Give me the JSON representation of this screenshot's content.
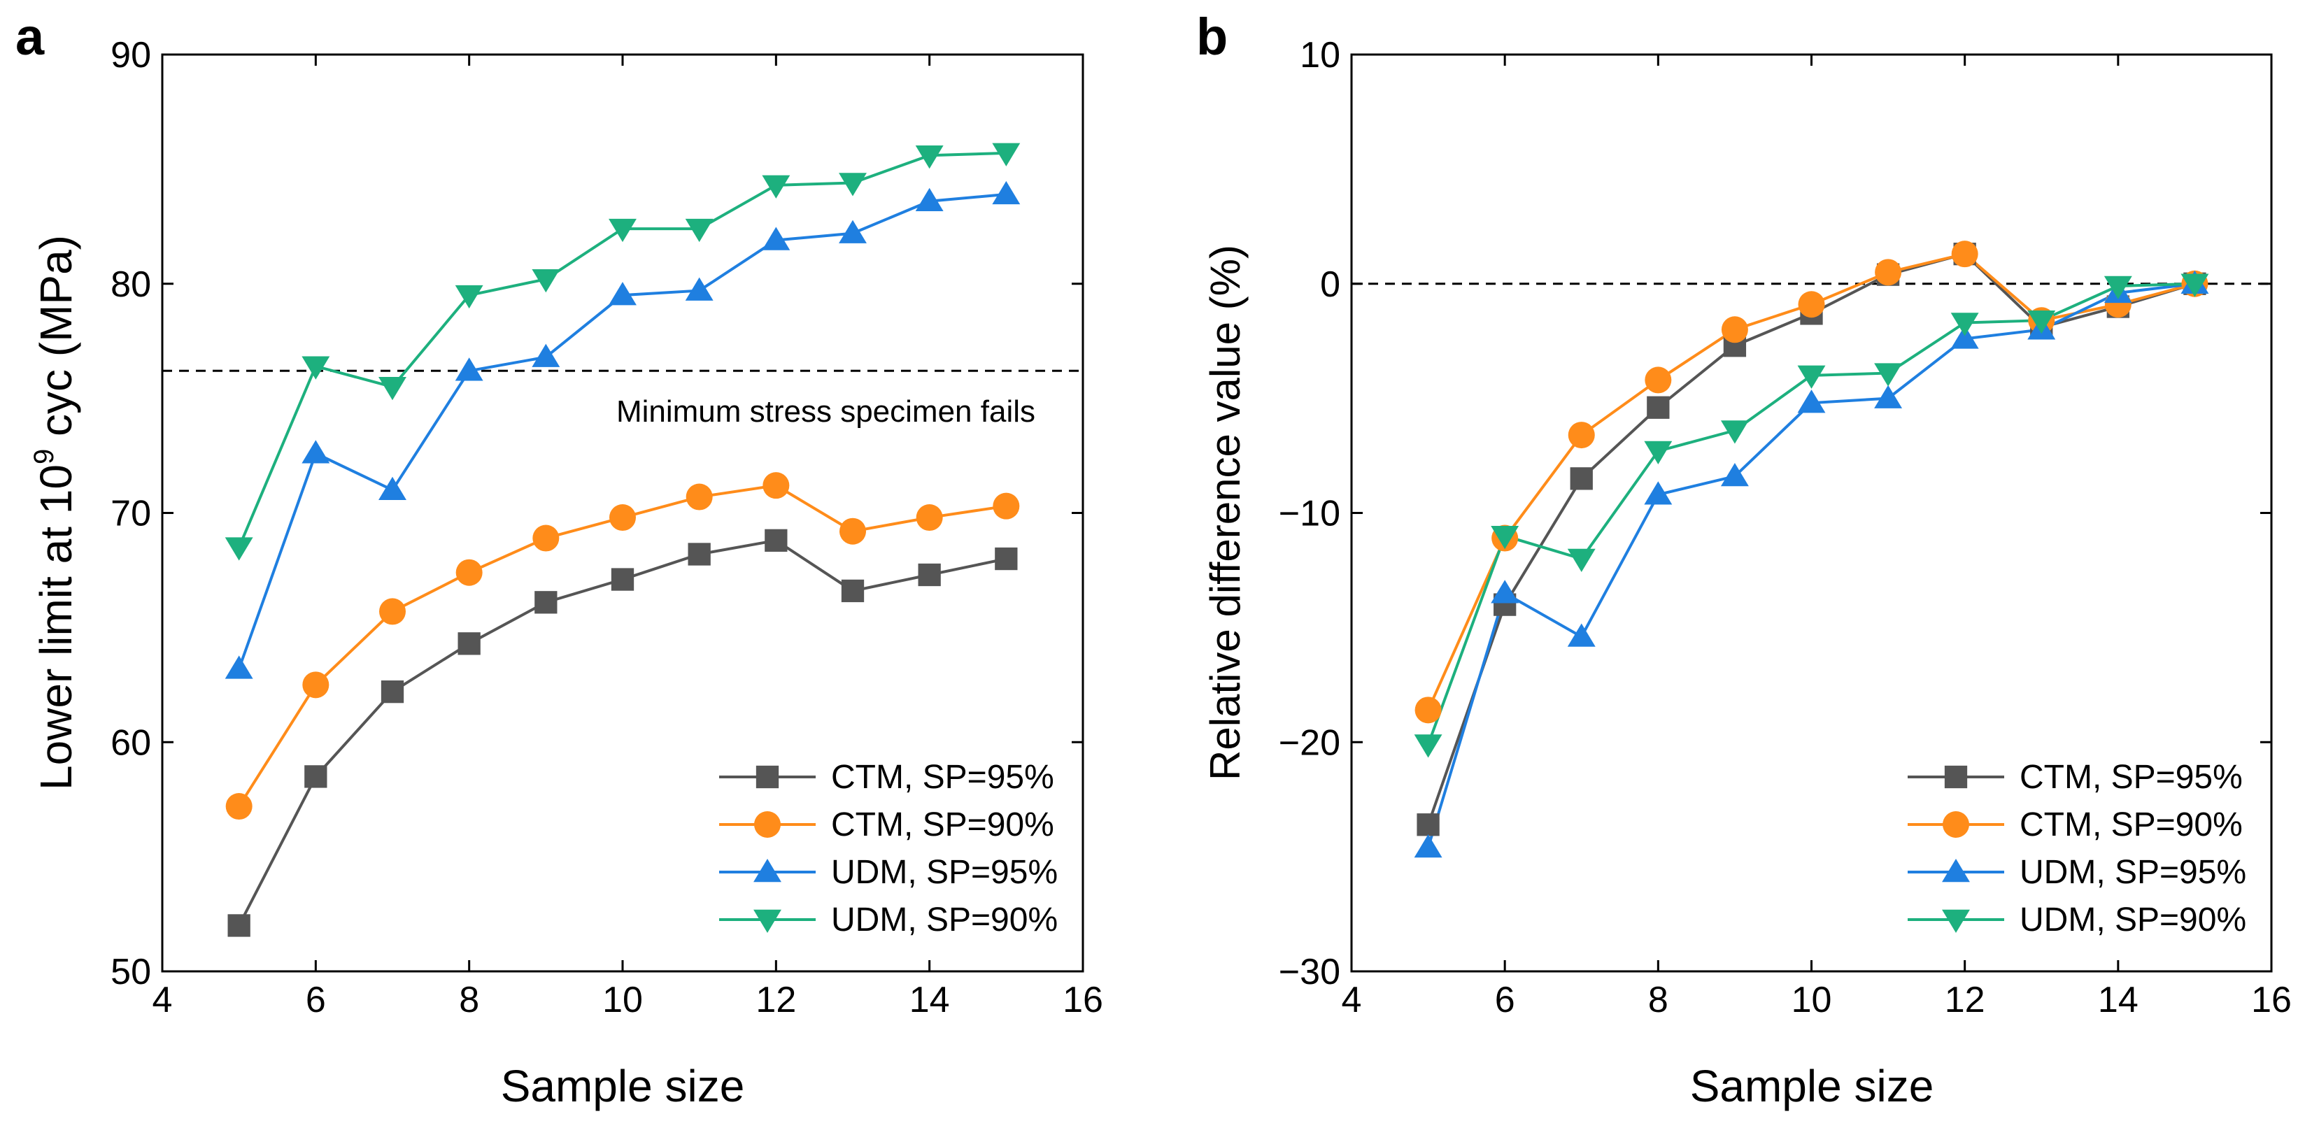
{
  "colors": {
    "CTM_SP95": "#555555",
    "CTM_SP90": "#FF8C1A",
    "UDM_SP95": "#1F7FE0",
    "UDM_SP90": "#1DB07E"
  },
  "chart_data": [
    {
      "panel": "a",
      "type": "line",
      "xlabel": "Sample size",
      "ylabel_prefix": "Lower limit at 10",
      "ylabel_sup": "9",
      "ylabel_suffix": " cyc (MPa)",
      "xlim": [
        4,
        16
      ],
      "ylim": [
        50,
        90
      ],
      "xticks": [
        4,
        6,
        8,
        10,
        12,
        14,
        16
      ],
      "yticks": [
        50,
        60,
        70,
        80,
        90
      ],
      "xtick_labels": [
        "4",
        "6",
        "8",
        "10",
        "12",
        "14",
        "16"
      ],
      "ytick_labels": [
        "50",
        "60",
        "70",
        "80",
        "90"
      ],
      "reference_line": {
        "y": 76.2,
        "label": "Minimum stress specimen fails"
      },
      "legend_position": "bottom-right",
      "x": [
        5,
        6,
        7,
        8,
        9,
        10,
        11,
        12,
        13,
        14,
        15
      ],
      "series": [
        {
          "name": "CTM, SP=95%",
          "marker": "square",
          "colorKey": "CTM_SP95",
          "values": [
            52.0,
            58.5,
            62.2,
            64.3,
            66.1,
            67.1,
            68.2,
            68.8,
            66.6,
            67.3,
            68.0
          ]
        },
        {
          "name": "CTM, SP=90%",
          "marker": "circle",
          "colorKey": "CTM_SP90",
          "values": [
            57.2,
            62.5,
            65.7,
            67.4,
            68.9,
            69.8,
            70.7,
            71.2,
            69.2,
            69.8,
            70.3
          ]
        },
        {
          "name": "UDM, SP=95%",
          "marker": "triangle-up",
          "colorKey": "UDM_SP95",
          "values": [
            63.2,
            72.6,
            71.0,
            76.2,
            76.8,
            79.5,
            79.7,
            81.9,
            82.2,
            83.6,
            83.9
          ]
        },
        {
          "name": "UDM, SP=90%",
          "marker": "triangle-down",
          "colorKey": "UDM_SP90",
          "values": [
            68.5,
            76.4,
            75.5,
            79.5,
            80.2,
            82.4,
            82.4,
            84.3,
            84.4,
            85.6,
            85.7
          ]
        }
      ]
    },
    {
      "panel": "b",
      "type": "line",
      "xlabel": "Sample size",
      "ylabel": "Relative difference value (%)",
      "xlim": [
        4,
        16
      ],
      "ylim": [
        -30,
        10
      ],
      "xticks": [
        4,
        6,
        8,
        10,
        12,
        14,
        16
      ],
      "yticks": [
        -30,
        -20,
        -10,
        0,
        10
      ],
      "xtick_labels": [
        "4",
        "6",
        "8",
        "10",
        "12",
        "14",
        "16"
      ],
      "ytick_labels": [
        "−30",
        "−20",
        "−10",
        "0",
        "10"
      ],
      "reference_line": {
        "y": 0,
        "label": ""
      },
      "legend_position": "bottom-right",
      "x": [
        5,
        6,
        7,
        8,
        9,
        10,
        11,
        12,
        13,
        14,
        15
      ],
      "series": [
        {
          "name": "CTM, SP=95%",
          "marker": "square",
          "colorKey": "CTM_SP95",
          "values": [
            -23.6,
            -14.0,
            -8.5,
            -5.4,
            -2.7,
            -1.3,
            0.4,
            1.3,
            -1.9,
            -1.0,
            0.0
          ]
        },
        {
          "name": "CTM, SP=90%",
          "marker": "circle",
          "colorKey": "CTM_SP90",
          "values": [
            -18.6,
            -11.1,
            -6.6,
            -4.2,
            -2.0,
            -0.9,
            0.5,
            1.3,
            -1.6,
            -0.9,
            0.0
          ]
        },
        {
          "name": "UDM, SP=95%",
          "marker": "triangle-up",
          "colorKey": "UDM_SP95",
          "values": [
            -24.6,
            -13.5,
            -15.4,
            -9.2,
            -8.4,
            -5.2,
            -5.0,
            -2.4,
            -2.0,
            -0.4,
            0.0
          ]
        },
        {
          "name": "UDM, SP=90%",
          "marker": "triangle-down",
          "colorKey": "UDM_SP90",
          "values": [
            -20.1,
            -11.0,
            -12.0,
            -7.3,
            -6.4,
            -4.0,
            -3.9,
            -1.7,
            -1.6,
            -0.1,
            0.0
          ]
        }
      ]
    }
  ]
}
